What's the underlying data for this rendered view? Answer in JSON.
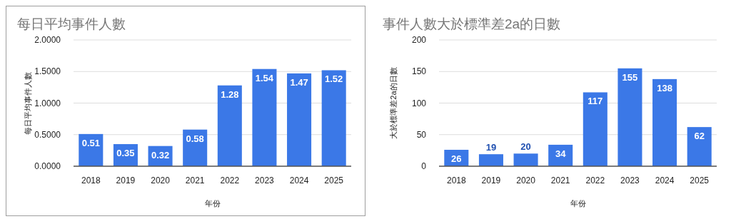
{
  "chart_data": [
    {
      "type": "bar",
      "title": "每日平均事件人數",
      "xlabel": "年份",
      "ylabel": "每日平均事件人數",
      "categories": [
        "2018",
        "2019",
        "2020",
        "2021",
        "2022",
        "2023",
        "2024",
        "2025"
      ],
      "values": [
        0.51,
        0.35,
        0.32,
        0.58,
        1.28,
        1.54,
        1.47,
        1.52
      ],
      "color": "#3b78e7",
      "ylim": [
        0,
        2
      ],
      "yticks": [
        {
          "value": 0,
          "label": "0.0000"
        },
        {
          "value": 0.5,
          "label": "0.5000"
        },
        {
          "value": 1,
          "label": "1.0000"
        },
        {
          "value": 1.5,
          "label": "1.5000"
        },
        {
          "value": 2,
          "label": "2.0000"
        }
      ],
      "grid": "y",
      "data_labels": true
    },
    {
      "type": "bar",
      "title": "事件人數大於標準差2a的日數",
      "xlabel": "年份",
      "ylabel": "大於標準差2a的日數",
      "categories": [
        "2018",
        "2019",
        "2020",
        "2021",
        "2022",
        "2023",
        "2024",
        "2025"
      ],
      "values": [
        26,
        19,
        20,
        34,
        117,
        155,
        138,
        62
      ],
      "color": "#3b78e7",
      "ylim": [
        0,
        200
      ],
      "yticks": [
        0,
        50,
        100,
        150,
        200
      ],
      "grid": "y",
      "data_labels": true
    }
  ]
}
